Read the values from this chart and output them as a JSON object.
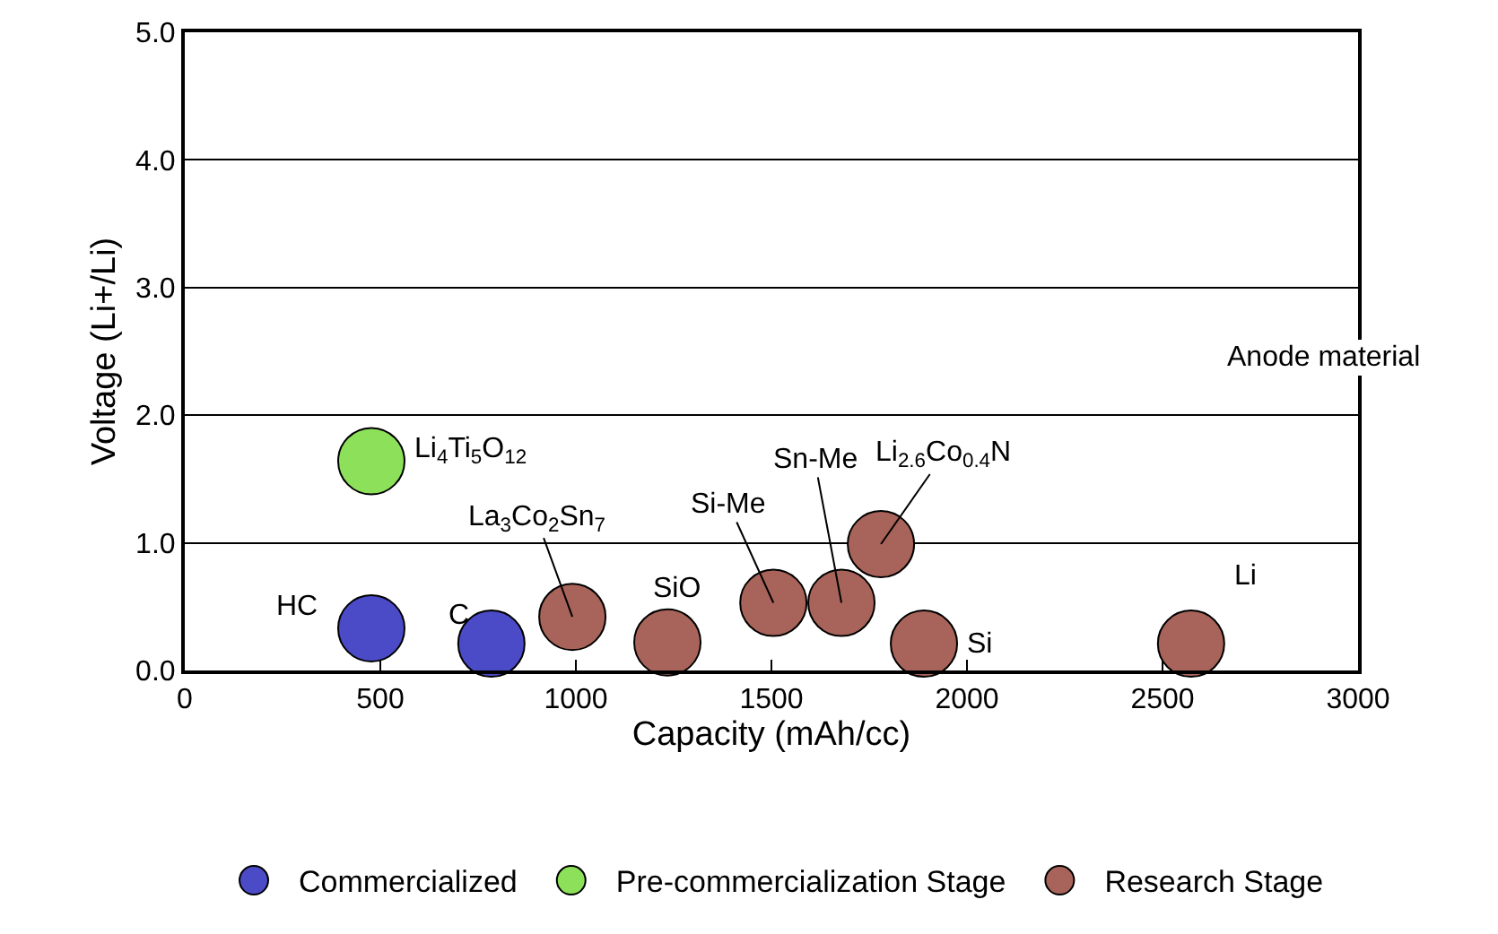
{
  "chart_data": {
    "type": "bubble",
    "xlabel": "Capacity (mAh/cc)",
    "ylabel": "Voltage (Li+/Li)",
    "xlim": [
      0,
      3000
    ],
    "xticks": [
      0,
      500,
      1000,
      1500,
      2000,
      2500,
      3000
    ],
    "ylim": [
      0,
      5
    ],
    "yticks": [
      {
        "value": 0,
        "label": "0.0"
      },
      {
        "value": 1,
        "label": "1.0"
      },
      {
        "value": 2,
        "label": "2.0"
      },
      {
        "value": 3,
        "label": "3.0"
      },
      {
        "value": 4,
        "label": "4.0"
      },
      {
        "value": 5,
        "label": "5.0"
      }
    ],
    "grid": "y",
    "legend": "bottom",
    "marker": "circle",
    "series": [
      {
        "name": "Commercialized",
        "color": "#4b4bc8",
        "x": [
          477,
          784
        ],
        "values": [
          0.33,
          0.21
        ],
        "sizes": [
          1,
          1
        ]
      },
      {
        "name": "Pre-commercialization Stage",
        "color": "#8de05a",
        "x": [
          477
        ],
        "values": [
          1.64
        ],
        "sizes": [
          1
        ]
      },
      {
        "name": "Research Stage",
        "color": "#a8645a",
        "x": [
          991,
          1234,
          1505,
          1679,
          1780,
          1890,
          2573
        ],
        "values": [
          0.42,
          0.22,
          0.53,
          0.53,
          0.99,
          0.21,
          0.21
        ],
        "sizes": [
          1,
          1,
          1,
          1,
          1,
          1,
          1
        ]
      }
    ],
    "annotations": [
      {
        "text": "HC",
        "x": 477,
        "y": 0.33
      },
      {
        "text": "C",
        "x": 784,
        "y": 0.21
      },
      {
        "text": "Li$_{4}$Ti$_{5}$O$_{12}$",
        "x": 477,
        "y": 1.64
      },
      {
        "text": "La$_{3}$Co$_{2}$Sn$_{7}$",
        "x": 991,
        "y": 0.42
      },
      {
        "text": "SiO",
        "x": 1234,
        "y": 0.22
      },
      {
        "text": "Si-Me",
        "x": 1505,
        "y": 0.53
      },
      {
        "text": "Sn-Me",
        "x": 1679,
        "y": 0.53
      },
      {
        "text": "Li$_{2.6}$Co$_{0.4}$N",
        "x": 1780,
        "y": 0.99
      },
      {
        "text": "Si",
        "x": 1890,
        "y": 0.21
      },
      {
        "text": "Li",
        "x": 2573,
        "y": 0.21
      },
      "Anode material"
    ]
  }
}
